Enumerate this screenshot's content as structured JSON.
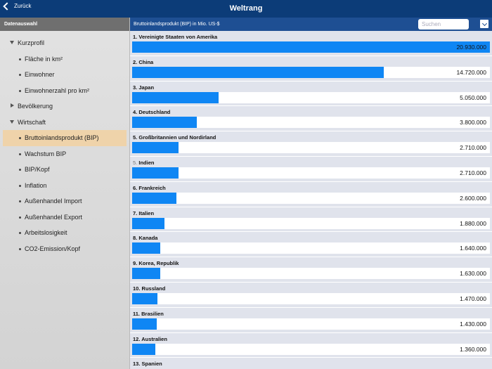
{
  "topbar": {
    "back_label": "Zurück",
    "title": "Weltrang"
  },
  "sidebar": {
    "header": "Datenauswahl",
    "items": [
      {
        "label": "Kurzprofil",
        "level": 0,
        "expanded": true
      },
      {
        "label": "Fläche in km²",
        "level": 1
      },
      {
        "label": "Einwohner",
        "level": 1
      },
      {
        "label": "Einwohnerzahl pro km²",
        "level": 1
      },
      {
        "label": "Bevölkerung",
        "level": 0,
        "expanded": false
      },
      {
        "label": "Wirtschaft",
        "level": 0,
        "expanded": true
      },
      {
        "label": "Bruttoinlandsprodukt (BIP)",
        "level": 1,
        "selected": true
      },
      {
        "label": "Wachstum BIP",
        "level": 1
      },
      {
        "label": "BIP/Kopf",
        "level": 1
      },
      {
        "label": "Inflation",
        "level": 1
      },
      {
        "label": "Außenhandel Import",
        "level": 1
      },
      {
        "label": "Außenhandel Export",
        "level": 1
      },
      {
        "label": "Arbeitslosigkeit",
        "level": 1
      },
      {
        "label": "CO2-Emission/Kopf",
        "level": 1
      }
    ]
  },
  "main": {
    "header_title": "Bruttoinlandsprodukt (BIP) in Mio. US-$",
    "search_placeholder": "Suchen",
    "max_value": 20930000,
    "rows": [
      {
        "rank": "1.",
        "name": "Vereinigte Staaten von Amerika",
        "value": 20930000,
        "value_label": "20.930.000"
      },
      {
        "rank": "2.",
        "name": "China",
        "value": 14720000,
        "value_label": "14.720.000"
      },
      {
        "rank": "3.",
        "name": "Japan",
        "value": 5050000,
        "value_label": "5.050.000"
      },
      {
        "rank": "4.",
        "name": "Deutschland",
        "value": 3800000,
        "value_label": "3.800.000"
      },
      {
        "rank": "5.",
        "name": "Großbritannien und Nordirland",
        "value": 2710000,
        "value_label": "2.710.000"
      },
      {
        "rank": "5.",
        "name": "Indien",
        "value": 2710000,
        "value_label": "2.710.000",
        "rank_grey": true
      },
      {
        "rank": "6.",
        "name": "Frankreich",
        "value": 2600000,
        "value_label": "2.600.000"
      },
      {
        "rank": "7.",
        "name": "Italien",
        "value": 1880000,
        "value_label": "1.880.000"
      },
      {
        "rank": "8.",
        "name": "Kanada",
        "value": 1640000,
        "value_label": "1.640.000"
      },
      {
        "rank": "9.",
        "name": "Korea, Republik",
        "value": 1630000,
        "value_label": "1.630.000"
      },
      {
        "rank": "10.",
        "name": "Russland",
        "value": 1470000,
        "value_label": "1.470.000"
      },
      {
        "rank": "11.",
        "name": "Brasilien",
        "value": 1430000,
        "value_label": "1.430.000"
      },
      {
        "rank": "12.",
        "name": "Australien",
        "value": 1360000,
        "value_label": "1.360.000"
      },
      {
        "rank": "13.",
        "name": "Spanien",
        "value": null,
        "value_label": ""
      }
    ]
  },
  "colors": {
    "bar": "#0f86f4",
    "header": "#1e4f93",
    "topbar": "#0c3c78",
    "selected": "#efd3aa"
  }
}
